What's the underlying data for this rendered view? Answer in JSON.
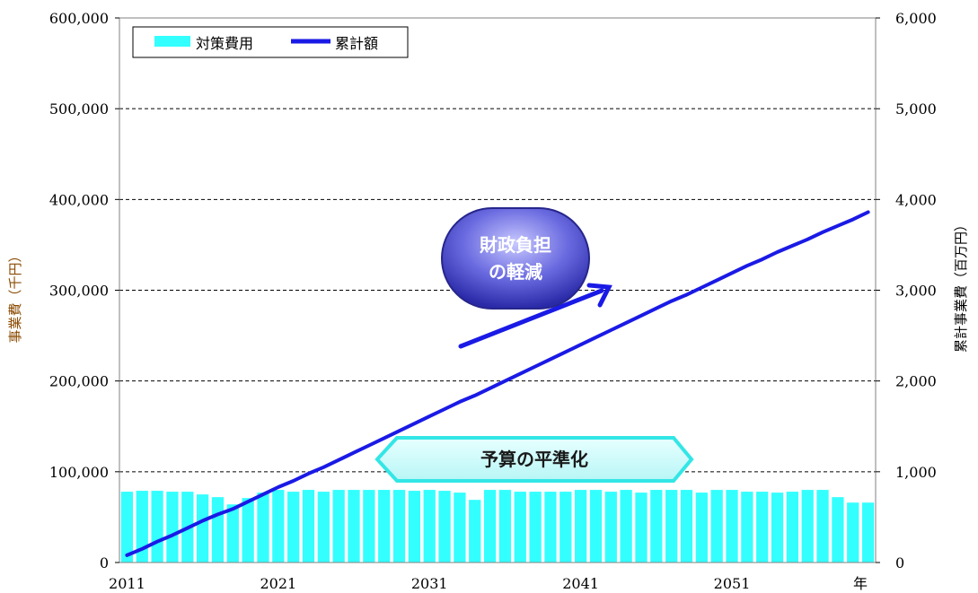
{
  "chart_data": {
    "type": "bar",
    "title": "",
    "x": [
      2011,
      2012,
      2013,
      2014,
      2015,
      2016,
      2017,
      2018,
      2019,
      2020,
      2021,
      2022,
      2023,
      2024,
      2025,
      2026,
      2027,
      2028,
      2029,
      2030,
      2031,
      2032,
      2033,
      2034,
      2035,
      2036,
      2037,
      2038,
      2039,
      2040,
      2041,
      2042,
      2043,
      2044,
      2045,
      2046,
      2047,
      2048,
      2049,
      2050,
      2051,
      2052,
      2053,
      2054,
      2055,
      2056,
      2057,
      2058,
      2059,
      2060
    ],
    "x_ticks": [
      "2011",
      "2021",
      "2031",
      "2041",
      "2051"
    ],
    "x_unit_label": "年",
    "series": [
      {
        "name": "対策費用",
        "type": "bar",
        "axis": "left",
        "color": "#33ffff",
        "values": [
          78000,
          79000,
          79000,
          78000,
          78000,
          75000,
          72000,
          64000,
          71000,
          77000,
          80000,
          78000,
          80000,
          78000,
          80000,
          80000,
          80000,
          80000,
          80000,
          79000,
          80000,
          79000,
          77000,
          69000,
          80000,
          80000,
          78000,
          78000,
          78000,
          78000,
          80000,
          80000,
          78000,
          80000,
          77000,
          80000,
          80000,
          80000,
          77000,
          80000,
          80000,
          78000,
          78000,
          77000,
          78000,
          80000,
          80000,
          72000,
          66000,
          66000
        ]
      },
      {
        "name": "累計額",
        "type": "line",
        "axis": "right",
        "color": "#1a1ae6",
        "values": [
          80,
          150,
          230,
          300,
          380,
          460,
          530,
          590,
          670,
          750,
          830,
          900,
          980,
          1050,
          1130,
          1210,
          1290,
          1370,
          1450,
          1530,
          1610,
          1690,
          1770,
          1840,
          1920,
          2000,
          2080,
          2160,
          2240,
          2320,
          2400,
          2480,
          2560,
          2640,
          2720,
          2800,
          2880,
          2950,
          3030,
          3110,
          3190,
          3270,
          3340,
          3420,
          3490,
          3560,
          3640,
          3710,
          3780,
          3860
        ]
      }
    ],
    "y_left": {
      "label": "事業費（千円）",
      "min": 0,
      "max": 600000,
      "ticks": [
        "0",
        "100,000",
        "200,000",
        "300,000",
        "400,000",
        "500,000",
        "600,000"
      ]
    },
    "y_right": {
      "label": "累計事業費（百万円）",
      "min": 0,
      "max": 6000,
      "ticks": [
        "0",
        "1,000",
        "2,000",
        "3,000",
        "4,000",
        "5,000",
        "6,000"
      ]
    },
    "grid": "horizontal-dashed",
    "legend": "top-left",
    "annotations": {
      "leveling": "予算の平準化",
      "burden_line1": "財政負担",
      "burden_line2": "の軽減"
    }
  },
  "colors": {
    "bar": "#33ffff",
    "line": "#1a1ae6",
    "left_axis_title": "#8b4a00",
    "badge_fill": "#ccffff",
    "badge_stroke": "#33e6e6",
    "blob_fill": "#5a5ad8",
    "blob_stroke": "#26268c"
  }
}
